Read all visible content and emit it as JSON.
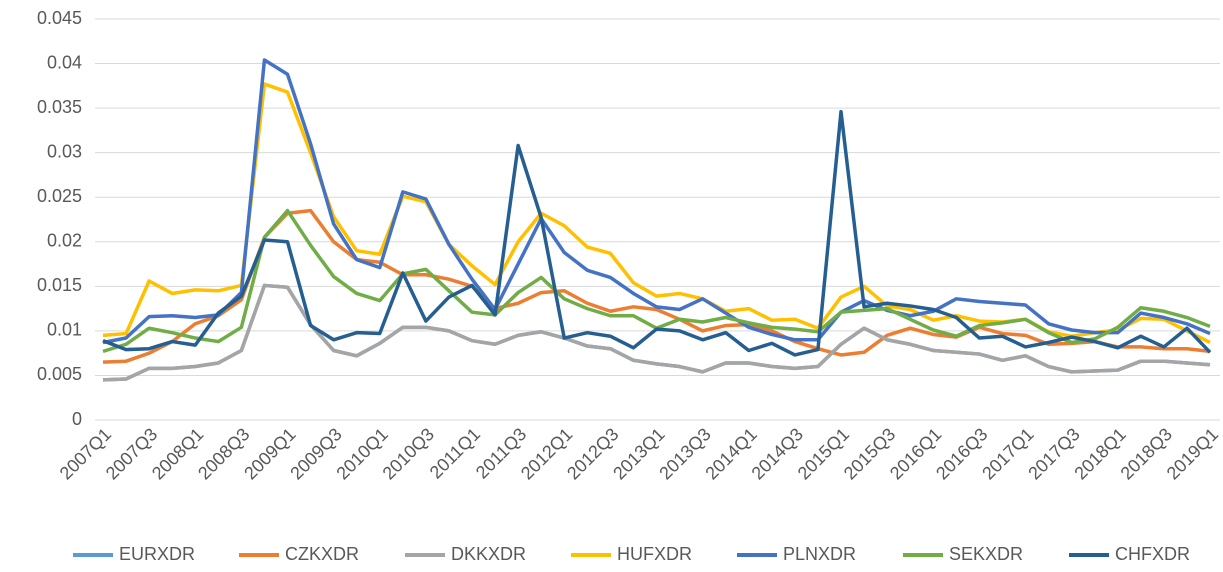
{
  "chart_data": {
    "type": "line",
    "categories": [
      "2007Q1",
      null,
      "2007Q3",
      null,
      "2008Q1",
      null,
      "2008Q3",
      null,
      "2009Q1",
      null,
      "2009Q3",
      null,
      "2010Q1",
      null,
      "2010Q3",
      null,
      "2011Q1",
      null,
      "2011Q3",
      null,
      "2012Q1",
      null,
      "2012Q3",
      null,
      "2013Q1",
      null,
      "2013Q3",
      null,
      "2014Q1",
      null,
      "2014Q3",
      null,
      "2015Q1",
      null,
      "2015Q3",
      null,
      "2016Q1",
      null,
      "2016Q3",
      null,
      "2017Q1",
      null,
      "2017Q3",
      null,
      "2018Q1",
      null,
      "2018Q3",
      null,
      "2019Q1"
    ],
    "ylim": [
      0,
      0.045
    ],
    "yticks": [
      0,
      0.005,
      0.01,
      0.015,
      0.02,
      0.025,
      0.03,
      0.035,
      0.04,
      0.045
    ],
    "grid": true,
    "series": [
      {
        "name": "EURXDR",
        "color": "#5b9bd5",
        "values": [
          0.0045,
          0.0046,
          0.0058,
          0.0058,
          0.006,
          0.0064,
          0.0078,
          0.0151,
          0.0149,
          0.0107,
          0.0078,
          0.0072,
          0.0086,
          0.0104,
          0.0104,
          0.01,
          0.0089,
          0.0085,
          0.0095,
          0.0099,
          0.0092,
          0.0083,
          0.008,
          0.0067,
          0.0063,
          0.006,
          0.0054,
          0.0064,
          0.0064,
          0.006,
          0.0058,
          0.006,
          0.0085,
          0.0103,
          0.009,
          0.0085,
          0.0078,
          0.0076,
          0.0074,
          0.0067,
          0.0072,
          0.006,
          0.0054,
          0.0055,
          0.0056,
          0.0066,
          0.0066,
          0.0064,
          0.0062
        ]
      },
      {
        "name": "CZKXDR",
        "color": "#ed7d31",
        "values": [
          0.0065,
          0.0066,
          0.0075,
          0.0088,
          0.0108,
          0.0117,
          0.0135,
          0.0205,
          0.0232,
          0.0235,
          0.02,
          0.018,
          0.0177,
          0.0163,
          0.0163,
          0.0158,
          0.015,
          0.0125,
          0.0131,
          0.0143,
          0.0145,
          0.0131,
          0.0122,
          0.0127,
          0.0124,
          0.0113,
          0.01,
          0.0106,
          0.0107,
          0.01,
          0.0088,
          0.008,
          0.0073,
          0.0076,
          0.0095,
          0.0103,
          0.0096,
          0.0093,
          0.0104,
          0.0097,
          0.0095,
          0.0085,
          0.0086,
          0.0088,
          0.0082,
          0.0082,
          0.008,
          0.008,
          0.0077
        ]
      },
      {
        "name": "DKKXDR",
        "color": "#a5a5a5",
        "values": [
          0.0045,
          0.0046,
          0.0058,
          0.0058,
          0.006,
          0.0064,
          0.0078,
          0.0151,
          0.0149,
          0.0107,
          0.0078,
          0.0072,
          0.0086,
          0.0104,
          0.0104,
          0.01,
          0.0089,
          0.0085,
          0.0095,
          0.0099,
          0.0092,
          0.0083,
          0.008,
          0.0067,
          0.0063,
          0.006,
          0.0054,
          0.0064,
          0.0064,
          0.006,
          0.0058,
          0.006,
          0.0085,
          0.0103,
          0.009,
          0.0085,
          0.0078,
          0.0076,
          0.0074,
          0.0067,
          0.0072,
          0.006,
          0.0054,
          0.0055,
          0.0056,
          0.0066,
          0.0066,
          0.0064,
          0.0062
        ]
      },
      {
        "name": "HUFXDR",
        "color": "#ffc000",
        "values": [
          0.0095,
          0.0097,
          0.0156,
          0.0142,
          0.0146,
          0.0145,
          0.0151,
          0.0377,
          0.0368,
          0.03,
          0.0228,
          0.019,
          0.0186,
          0.0251,
          0.0245,
          0.0197,
          0.0173,
          0.0152,
          0.02,
          0.0232,
          0.0218,
          0.0194,
          0.0187,
          0.0154,
          0.0139,
          0.0142,
          0.0136,
          0.0122,
          0.0125,
          0.0112,
          0.0113,
          0.0103,
          0.0138,
          0.015,
          0.0128,
          0.0124,
          0.0112,
          0.0117,
          0.0111,
          0.011,
          0.0113,
          0.0099,
          0.0094,
          0.0098,
          0.0101,
          0.0114,
          0.0113,
          0.01,
          0.0087
        ]
      },
      {
        "name": "PLNXDR",
        "color": "#4472c4",
        "values": [
          0.0087,
          0.0092,
          0.0116,
          0.0117,
          0.0115,
          0.0118,
          0.0143,
          0.0404,
          0.0388,
          0.031,
          0.022,
          0.018,
          0.0171,
          0.0256,
          0.0248,
          0.0197,
          0.0158,
          0.0124,
          0.0175,
          0.0226,
          0.0188,
          0.0168,
          0.016,
          0.0142,
          0.0127,
          0.0124,
          0.0136,
          0.012,
          0.0104,
          0.0096,
          0.009,
          0.009,
          0.0121,
          0.0134,
          0.0123,
          0.0117,
          0.0122,
          0.0136,
          0.0133,
          0.0131,
          0.0129,
          0.0108,
          0.0101,
          0.0098,
          0.0098,
          0.012,
          0.0115,
          0.0108,
          0.0097
        ]
      },
      {
        "name": "SEKXDR",
        "color": "#70ad47",
        "values": [
          0.0077,
          0.0085,
          0.0103,
          0.0098,
          0.0092,
          0.0088,
          0.0104,
          0.0205,
          0.0235,
          0.0196,
          0.0161,
          0.0142,
          0.0134,
          0.0164,
          0.0169,
          0.0145,
          0.0121,
          0.0118,
          0.0143,
          0.016,
          0.0136,
          0.0125,
          0.0117,
          0.0117,
          0.0103,
          0.0113,
          0.011,
          0.0115,
          0.0109,
          0.0104,
          0.0102,
          0.0099,
          0.0121,
          0.0123,
          0.0125,
          0.0113,
          0.0101,
          0.0094,
          0.0106,
          0.0109,
          0.0113,
          0.0098,
          0.0087,
          0.0091,
          0.0104,
          0.0126,
          0.0122,
          0.0115,
          0.0105
        ]
      },
      {
        "name": "CHFXDR",
        "color": "#255e91",
        "values": [
          0.0089,
          0.0079,
          0.008,
          0.0088,
          0.0084,
          0.012,
          0.0139,
          0.0202,
          0.02,
          0.0106,
          0.009,
          0.0098,
          0.0097,
          0.0165,
          0.0111,
          0.0138,
          0.0151,
          0.0118,
          0.0308,
          0.0227,
          0.0092,
          0.0098,
          0.0094,
          0.0081,
          0.0102,
          0.01,
          0.009,
          0.0098,
          0.0078,
          0.0086,
          0.0073,
          0.0079,
          0.0346,
          0.0127,
          0.0131,
          0.0128,
          0.0124,
          0.0115,
          0.0092,
          0.0094,
          0.0082,
          0.0087,
          0.0093,
          0.0088,
          0.0081,
          0.0094,
          0.0082,
          0.0103,
          0.0076
        ]
      }
    ]
  }
}
